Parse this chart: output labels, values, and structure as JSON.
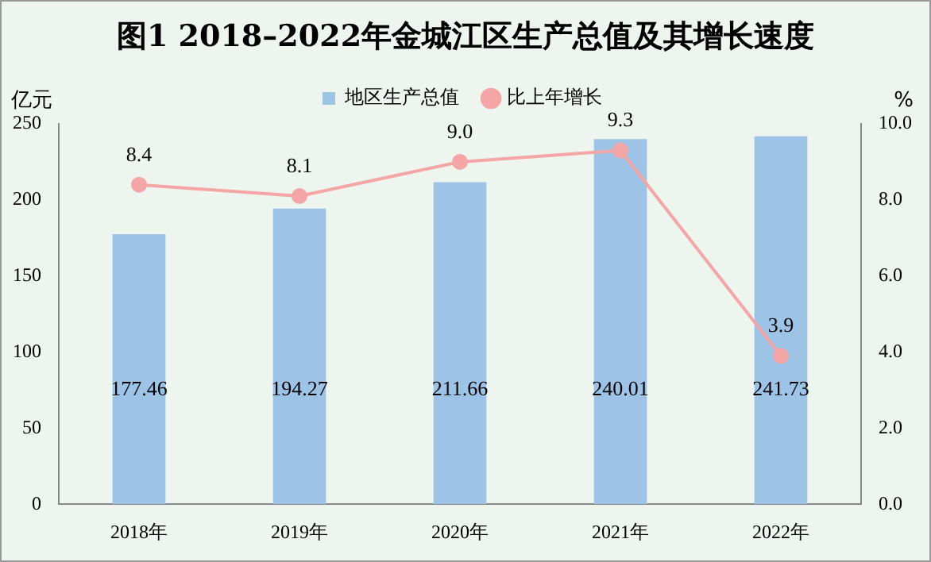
{
  "chart_data": {
    "type": "bar",
    "title": "图1  2018–2022年金城江区生产总值及其增长速度",
    "categories": [
      "2018年",
      "2019年",
      "2020年",
      "2021年",
      "2022年"
    ],
    "series": [
      {
        "name": "地区生产总值",
        "color": "#9dc3e6",
        "values": [
          177.46,
          194.27,
          211.66,
          240.01,
          241.73
        ],
        "value_labels": [
          "177.46",
          "194.27",
          "211.66",
          "240.01",
          "241.73"
        ]
      },
      {
        "name": "比上年增长",
        "type": "line",
        "axis": "y2",
        "color": "#f4a6a6",
        "values": [
          8.4,
          8.1,
          9.0,
          9.3,
          3.9
        ],
        "value_labels": [
          "8.4",
          "8.1",
          "9.0",
          "9.3",
          "3.9"
        ]
      }
    ],
    "ylabel": "亿元",
    "y2label": "%",
    "ylim": [
      0,
      250
    ],
    "yticks": [
      0,
      50,
      100,
      150,
      200,
      250
    ],
    "y2lim": [
      0,
      10
    ],
    "y2ticks": [
      {
        "value": 0,
        "label": "0.0"
      },
      {
        "value": 2,
        "label": "2.0"
      },
      {
        "value": 4,
        "label": "4.0"
      },
      {
        "value": 6,
        "label": "6.0"
      },
      {
        "value": 8,
        "label": "8.0"
      },
      {
        "value": 10,
        "label": "10.0"
      }
    ],
    "legend": "top",
    "marker": "circle",
    "grid": false
  }
}
